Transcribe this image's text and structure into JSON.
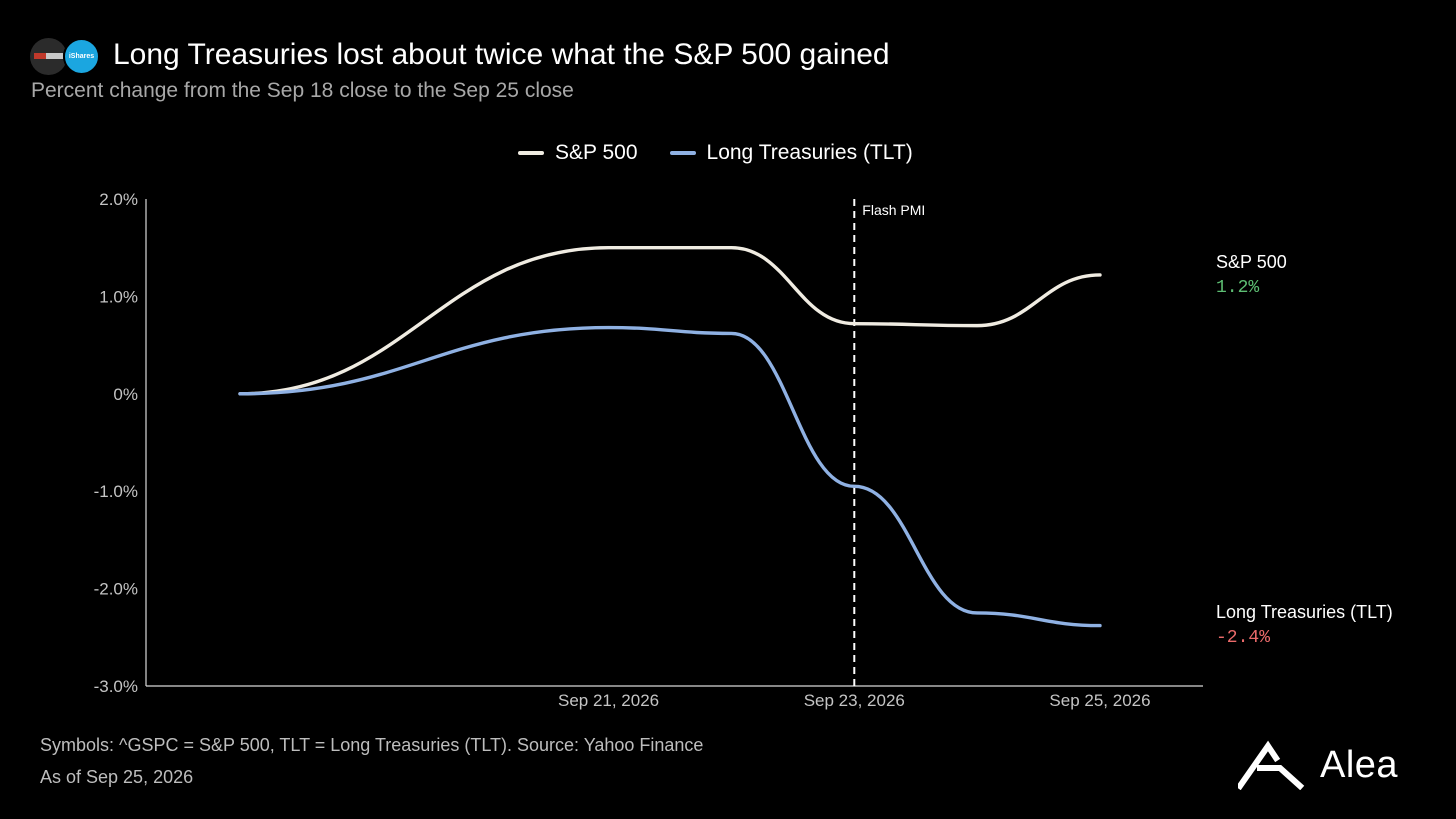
{
  "header": {
    "title": "Long Treasuries lost about twice what the S&P 500 gained",
    "subtitle": "Percent change from the Sep 18 close to the Sep 25 close",
    "logos": [
      {
        "icon": "sp500-logo-icon"
      },
      {
        "icon": "ishares-logo-icon",
        "text": "iShares"
      }
    ]
  },
  "footer": {
    "source": "Symbols: ^GSPC = S&P 500, TLT = Long Treasuries (TLT). Source: Yahoo Finance",
    "as_of": "As of Sep 25, 2026",
    "brand": "Alea"
  },
  "chart_data": {
    "type": "line",
    "title": "",
    "xlabel": "",
    "ylabel": "",
    "x": [
      "Sep 18, 2026",
      "Sep 21, 2026",
      "Sep 22, 2026",
      "Sep 23, 2026",
      "Sep 24, 2026",
      "Sep 25, 2026"
    ],
    "x_ticks": [
      "Sep 21, 2026",
      "Sep 23, 2026",
      "Sep 25, 2026"
    ],
    "y_ticks": [
      "2.0%",
      "1.0%",
      "0%",
      "-1.0%",
      "-2.0%",
      "-3.0%"
    ],
    "ylim": [
      -3.0,
      2.0
    ],
    "grid": false,
    "legend_position": "top-center",
    "series": [
      {
        "name": "S&P 500",
        "color": "#f0ece2",
        "values": [
          0,
          1.5,
          1.5,
          0.72,
          0.7,
          1.22
        ],
        "end_label": "1.2%",
        "end_color": "#5dbe73"
      },
      {
        "name": "Long Treasuries (TLT)",
        "color": "#8fb1e3",
        "values": [
          0,
          0.68,
          0.62,
          -0.95,
          -2.25,
          -2.38
        ],
        "end_label": "-2.4%",
        "end_color": "#ea6a6a"
      }
    ],
    "annotations": [
      {
        "label": "Flash PMI",
        "x": "Sep 23, 2026",
        "style": "dashed-vertical"
      }
    ]
  }
}
